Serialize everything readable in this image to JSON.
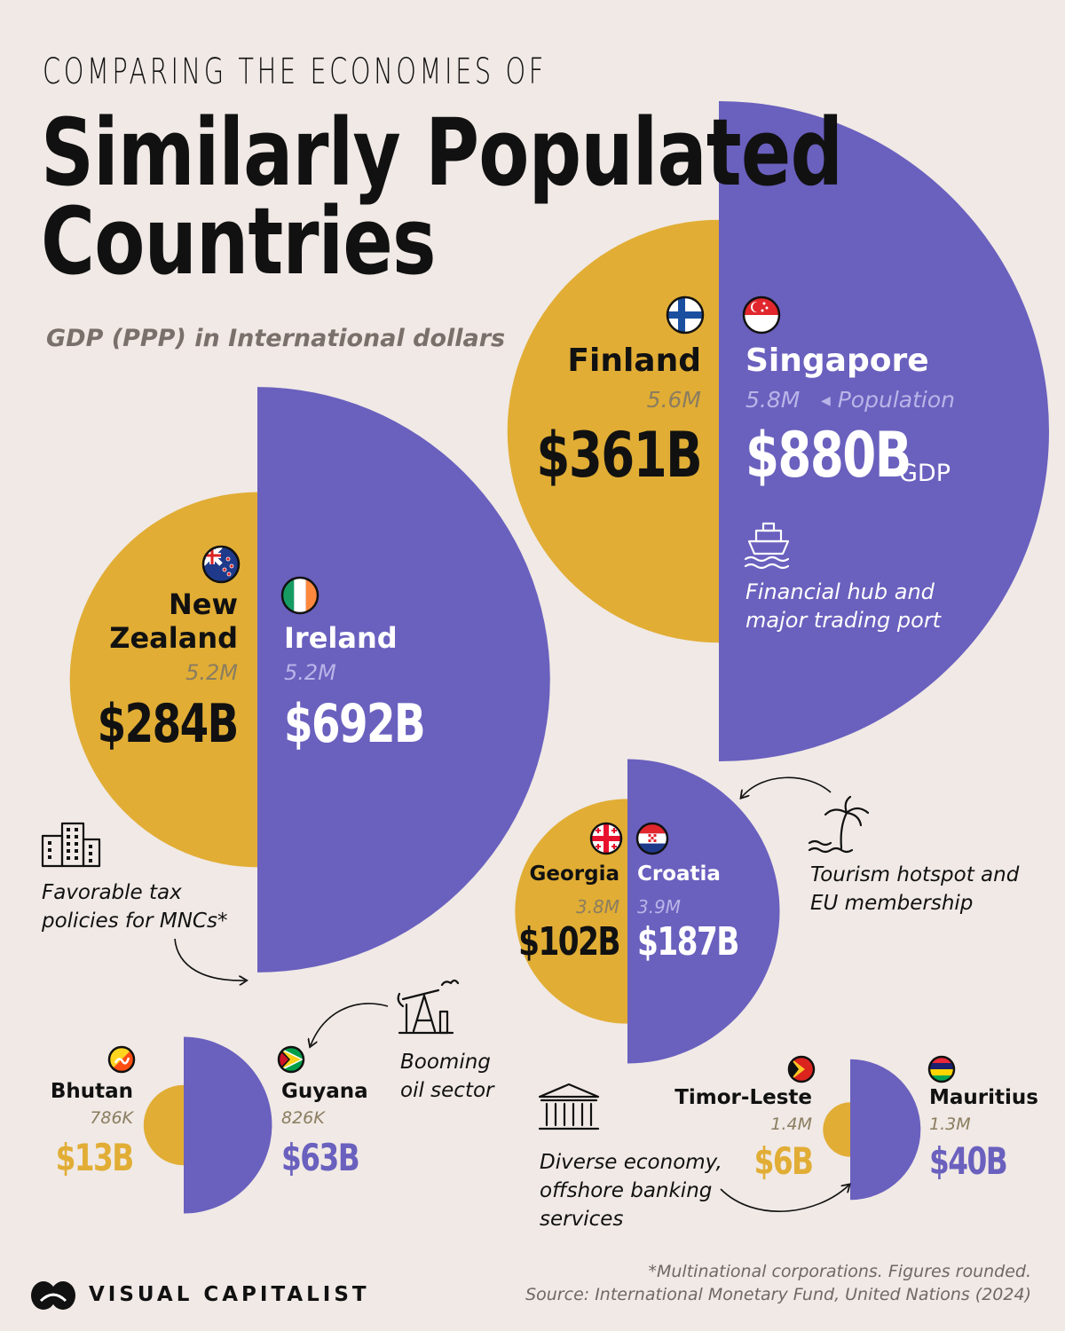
{
  "header": {
    "kicker": "COMPARING THE ECONOMIES OF",
    "title_line1": "Similarly Populated",
    "title_line2": "Countries",
    "subtitle": "GDP (PPP) in International dollars"
  },
  "legend": {
    "population_label": "Population",
    "gdp_label": "GDP"
  },
  "colors": {
    "background": "#f0e9e5",
    "smaller_economy": "#e1ad35",
    "larger_economy": "#6a60be"
  },
  "chart_data": {
    "type": "paired half-circle (proportional area)",
    "units": {
      "gdp": "International dollars, billions (PPP)",
      "population": "people"
    },
    "pairs": [
      {
        "left": {
          "country": "Finland",
          "flag": "finland-flag-icon",
          "population": "5.6M",
          "gdp": "$361B",
          "gdp_value": 361
        },
        "right": {
          "country": "Singapore",
          "flag": "singapore-flag-icon",
          "population": "5.8M",
          "gdp": "$880B",
          "gdp_value": 880
        },
        "note_icon": "ship-icon",
        "note": "Financial hub and major trading port"
      },
      {
        "left": {
          "country": "New Zealand",
          "flag": "new-zealand-flag-icon",
          "population": "5.2M",
          "gdp": "$284B",
          "gdp_value": 284
        },
        "right": {
          "country": "Ireland",
          "flag": "ireland-flag-icon",
          "population": "5.2M",
          "gdp": "$692B",
          "gdp_value": 692
        },
        "note_icon": "office-buildings-icon",
        "note": "Favorable tax policies for MNCs*"
      },
      {
        "left": {
          "country": "Georgia",
          "flag": "georgia-flag-icon",
          "population": "3.8M",
          "gdp": "$102B",
          "gdp_value": 102
        },
        "right": {
          "country": "Croatia",
          "flag": "croatia-flag-icon",
          "population": "3.9M",
          "gdp": "$187B",
          "gdp_value": 187
        },
        "note_icon": "palm-tree-icon",
        "note": "Tourism hotspot and EU membership"
      },
      {
        "left": {
          "country": "Bhutan",
          "flag": "bhutan-flag-icon",
          "population": "786K",
          "gdp": "$13B",
          "gdp_value": 13
        },
        "right": {
          "country": "Guyana",
          "flag": "guyana-flag-icon",
          "population": "826K",
          "gdp": "$63B",
          "gdp_value": 63
        },
        "note_icon": "oil-pump-icon",
        "note": "Booming oil sector"
      },
      {
        "left": {
          "country": "Timor-Leste",
          "flag": "timor-leste-flag-icon",
          "population": "1.4M",
          "gdp": "$6B",
          "gdp_value": 6
        },
        "right": {
          "country": "Mauritius",
          "flag": "mauritius-flag-icon",
          "population": "1.3M",
          "gdp": "$40B",
          "gdp_value": 40
        },
        "note_icon": "bank-building-icon",
        "note": "Diverse economy, offshore banking services"
      }
    ]
  },
  "footer": {
    "footnote": "*Multinational corporations. Figures rounded.",
    "source": "Source: International Monetary Fund, United Nations (2024)",
    "brand": "VISUAL CAPITALIST",
    "brand_icon": "visual-capitalist-logo-icon"
  }
}
